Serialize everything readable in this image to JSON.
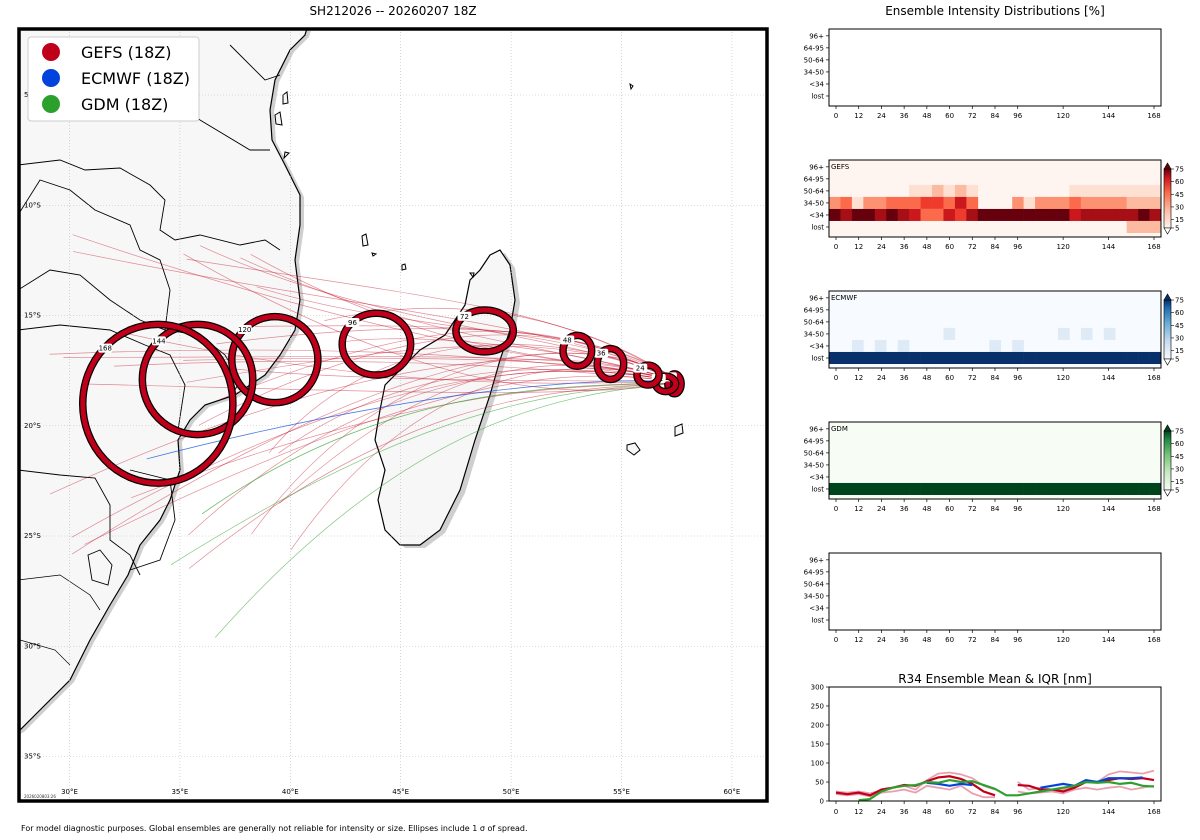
{
  "header": {
    "map_title": "SH212026 -- 20260207 18Z",
    "right_title": "Ensemble Intensity Distributions [%]",
    "r34_title": "R34 Ensemble Mean & IQR [nm]",
    "footer": "For model diagnostic purposes. Global ensembles are generally not reliable for intensity or size. Ellipses include 1 σ of spread.",
    "timestamp": "2026020803:26"
  },
  "colors": {
    "gefs": "#c0001a",
    "ecmwf": "#0044dd",
    "gdm": "#2ca02c",
    "land": "#f7f7f7",
    "ocean": "#ffffff",
    "coast_shadow": "#cfcfcf"
  },
  "legend": [
    {
      "label": "GEFS (18Z)",
      "color": "#c0001a"
    },
    {
      "label": "ECMWF (18Z)",
      "color": "#0044dd"
    },
    {
      "label": "GDM (18Z)",
      "color": "#2ca02c"
    }
  ],
  "map": {
    "lon_ticks": [
      {
        "lon": 30,
        "label": "30°E"
      },
      {
        "lon": 35,
        "label": "35°E"
      },
      {
        "lon": 40,
        "label": "40°E"
      },
      {
        "lon": 45,
        "label": "45°E"
      },
      {
        "lon": 50,
        "label": "50°E"
      },
      {
        "lon": 55,
        "label": "55°E"
      },
      {
        "lon": 60,
        "label": "60°E"
      }
    ],
    "lat_ticks": [
      {
        "lat": -5,
        "label": "5°S"
      },
      {
        "lat": -10,
        "label": "10°S"
      },
      {
        "lat": -15,
        "label": "15°S"
      },
      {
        "lat": -20,
        "label": "20°S"
      },
      {
        "lat": -25,
        "label": "25°S"
      },
      {
        "lat": -30,
        "label": "30°S"
      },
      {
        "lat": -35,
        "label": "35°S"
      }
    ],
    "ellipses": [
      {
        "hour": "0",
        "lon": 57.4,
        "lat": -18.1,
        "rx": 0.3,
        "ry": 0.45
      },
      {
        "hour": "12",
        "lon": 57.0,
        "lat": -18.1,
        "rx": 0.45,
        "ry": 0.35
      },
      {
        "hour": "24",
        "lon": 56.2,
        "lat": -17.7,
        "rx": 0.5,
        "ry": 0.45
      },
      {
        "hour": "36",
        "lon": 54.5,
        "lat": -17.2,
        "rx": 0.6,
        "ry": 0.7
      },
      {
        "hour": "48",
        "lon": 53.0,
        "lat": -16.6,
        "rx": 0.65,
        "ry": 0.7
      },
      {
        "hour": "72",
        "lon": 48.8,
        "lat": -15.7,
        "rx": 1.3,
        "ry": 0.95
      },
      {
        "hour": "96",
        "lon": 43.9,
        "lat": -16.3,
        "rx": 1.55,
        "ry": 1.4
      },
      {
        "hour": "120",
        "lon": 39.3,
        "lat": -17.0,
        "rx": 1.95,
        "ry": 1.95
      },
      {
        "hour": "144",
        "lon": 35.8,
        "lat": -17.9,
        "rx": 2.5,
        "ry": 2.5
      },
      {
        "hour": "168",
        "lon": 34.0,
        "lat": -19.0,
        "rx": 3.4,
        "ry": 3.6
      }
    ]
  },
  "intensity": {
    "categories": [
      "96+",
      "64-95",
      "50-64",
      "34-50",
      "<34",
      "lost"
    ],
    "hours": [
      0,
      6,
      12,
      18,
      24,
      30,
      36,
      42,
      48,
      54,
      60,
      66,
      72,
      78,
      84,
      90,
      96,
      102,
      108,
      114,
      120,
      126,
      132,
      138,
      144,
      150,
      156,
      162,
      168
    ],
    "xticks": [
      0,
      12,
      24,
      36,
      48,
      60,
      72,
      84,
      96,
      120,
      144,
      168
    ],
    "colorbar_ticks": [
      5,
      15,
      30,
      45,
      60,
      75
    ],
    "panels": [
      {
        "name": "",
        "has_data": false
      },
      {
        "name": "GEFS",
        "has_data": true,
        "cmap": "reds",
        "rows": {
          "50-64": [
            0,
            0,
            0,
            0,
            0,
            0,
            0,
            12,
            12,
            18,
            12,
            18,
            12,
            0,
            0,
            0,
            0,
            0,
            0,
            0,
            0,
            12,
            12,
            12,
            12,
            12,
            6,
            6,
            6
          ],
          "34-50": [
            30,
            40,
            12,
            25,
            25,
            35,
            35,
            40,
            50,
            50,
            40,
            55,
            35,
            0,
            0,
            0,
            25,
            12,
            25,
            25,
            25,
            40,
            30,
            30,
            30,
            30,
            15,
            15,
            20
          ],
          "<34": [
            90,
            70,
            85,
            85,
            70,
            80,
            70,
            60,
            40,
            35,
            60,
            45,
            65,
            95,
            95,
            95,
            80,
            80,
            80,
            80,
            75,
            60,
            65,
            65,
            65,
            65,
            70,
            75,
            70
          ],
          "lost": [
            0,
            0,
            0,
            0,
            0,
            0,
            0,
            0,
            0,
            0,
            0,
            0,
            0,
            0,
            0,
            0,
            0,
            0,
            0,
            0,
            0,
            0,
            0,
            0,
            0,
            0,
            15,
            15,
            15
          ]
        }
      },
      {
        "name": "ECMWF",
        "has_data": true,
        "cmap": "blues",
        "rows": {
          "34-50": [
            0,
            0,
            0,
            0,
            0,
            0,
            0,
            0,
            0,
            0,
            12,
            0,
            0,
            0,
            0,
            0,
            0,
            0,
            0,
            0,
            12,
            0,
            12,
            0,
            12,
            0,
            0,
            0,
            0
          ],
          "<34": [
            0,
            0,
            12,
            0,
            12,
            0,
            12,
            0,
            0,
            0,
            0,
            0,
            0,
            0,
            12,
            0,
            12,
            0,
            0,
            0,
            0,
            0,
            0,
            0,
            0,
            0,
            0,
            0,
            0
          ],
          "lost": [
            95,
            95,
            95,
            95,
            95,
            95,
            95,
            95,
            95,
            95,
            95,
            95,
            95,
            95,
            95,
            95,
            95,
            95,
            95,
            95,
            95,
            95,
            95,
            95,
            95,
            95,
            95,
            95,
            95
          ]
        }
      },
      {
        "name": "GDM",
        "has_data": true,
        "cmap": "greens",
        "rows": {
          "lost": [
            95,
            95,
            95,
            95,
            95,
            95,
            95,
            95,
            95,
            95,
            95,
            95,
            95,
            95,
            95,
            95,
            95,
            95,
            95,
            95,
            95,
            95,
            95,
            95,
            95,
            95,
            95,
            95,
            95
          ]
        }
      },
      {
        "name": "",
        "has_data": false
      }
    ]
  },
  "chart_data": {
    "type": "line",
    "title": "R34 Ensemble Mean & IQR [nm]",
    "xlabel": "",
    "ylabel": "",
    "ylim": [
      0,
      300
    ],
    "yticks": [
      0,
      50,
      100,
      150,
      200,
      250,
      300
    ],
    "xticks": [
      0,
      12,
      24,
      36,
      48,
      60,
      72,
      84,
      96,
      120,
      144,
      168
    ],
    "x": [
      0,
      6,
      12,
      18,
      24,
      30,
      36,
      42,
      48,
      54,
      60,
      66,
      72,
      78,
      84,
      90,
      96,
      102,
      108,
      114,
      120,
      126,
      132,
      138,
      144,
      150,
      156,
      162,
      168
    ],
    "series": [
      {
        "name": "GEFS IQR",
        "color": "#e8a0b0",
        "values": [
          25,
          22,
          25,
          20,
          28,
          35,
          40,
          30,
          55,
          72,
          75,
          70,
          60,
          40,
          30,
          null,
          50,
          30,
          35,
          30,
          30,
          40,
          55,
          50,
          70,
          78,
          75,
          72,
          80
        ]
      },
      {
        "name": "GEFS IQR",
        "color": "#e8a0b0",
        "values": [
          18,
          15,
          18,
          12,
          22,
          25,
          30,
          22,
          40,
          35,
          30,
          40,
          20,
          10,
          10,
          null,
          25,
          20,
          22,
          25,
          20,
          30,
          35,
          30,
          35,
          38,
          30,
          35,
          40
        ]
      },
      {
        "name": "GEFS mean",
        "color": "#c0001a",
        "values": [
          22,
          18,
          22,
          15,
          30,
          35,
          42,
          40,
          52,
          62,
          65,
          58,
          45,
          25,
          15,
          null,
          42,
          40,
          30,
          30,
          25,
          35,
          50,
          50,
          55,
          60,
          58,
          60,
          55
        ]
      },
      {
        "name": "ECMWF mean",
        "color": "#0044dd",
        "values": [
          null,
          null,
          null,
          null,
          null,
          null,
          null,
          null,
          48,
          45,
          40,
          45,
          42,
          null,
          null,
          null,
          null,
          null,
          35,
          40,
          45,
          40,
          55,
          50,
          60,
          60,
          60,
          62,
          null
        ]
      },
      {
        "name": "GDM mean",
        "color": "#2ca02c",
        "values": [
          null,
          null,
          2,
          5,
          25,
          35,
          40,
          42,
          50,
          48,
          55,
          50,
          52,
          42,
          32,
          15,
          15,
          20,
          25,
          30,
          35,
          40,
          50,
          48,
          50,
          45,
          48,
          40,
          38
        ]
      }
    ]
  }
}
